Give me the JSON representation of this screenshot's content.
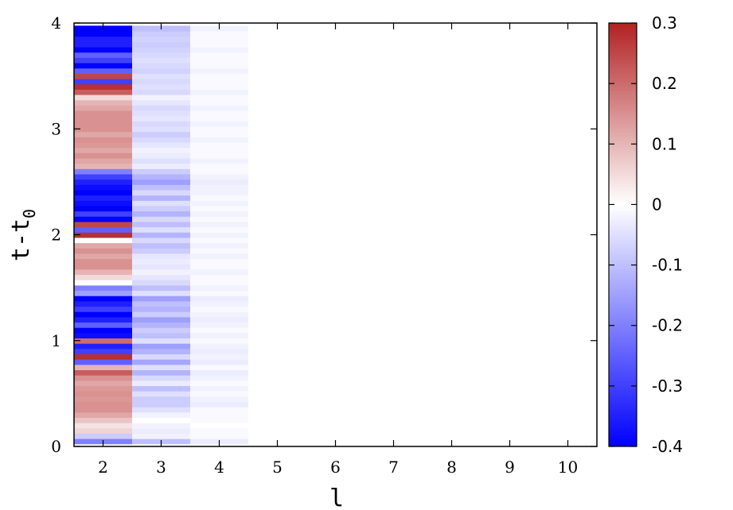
{
  "chart_data": {
    "type": "heatmap",
    "title": "",
    "xlabel": "l",
    "ylabel_base": "t-t",
    "ylabel_sub": "0",
    "x": [
      2,
      3,
      4,
      5,
      6,
      7,
      8,
      9,
      10
    ],
    "x_ticks": [
      "2",
      "3",
      "4",
      "5",
      "6",
      "7",
      "8",
      "9",
      "10"
    ],
    "xlim": [
      1.5,
      10.5
    ],
    "ylim": [
      0,
      4
    ],
    "y_ticks": [
      "0",
      "1",
      "2",
      "3",
      "4"
    ],
    "y_start": 0.05,
    "y_step": 0.05,
    "columns": [
      {
        "l": 2,
        "values": [
          -0.2,
          -0.08,
          0.06,
          0.04,
          0.08,
          0.12,
          0.15,
          0.15,
          0.14,
          0.15,
          0.14,
          0.12,
          0.15,
          0.22,
          0.1,
          -0.25,
          0.28,
          -0.3,
          -0.35,
          0.2,
          -0.38,
          -0.4,
          -0.25,
          -0.35,
          -0.4,
          -0.3,
          -0.35,
          -0.4,
          -0.15,
          -0.2,
          0.0,
          0.05,
          0.1,
          0.15,
          0.15,
          0.12,
          0.15,
          0.12,
          0.0,
          0.28,
          -0.25,
          0.25,
          -0.4,
          -0.3,
          -0.4,
          -0.38,
          -0.35,
          -0.4,
          -0.38,
          -0.35,
          -0.3,
          -0.2,
          0.1,
          0.12,
          0.15,
          0.12,
          0.14,
          0.15,
          0.12,
          0.15,
          0.15,
          0.15,
          0.15,
          0.12,
          0.1,
          0.05,
          0.22,
          0.28,
          -0.3,
          0.25,
          -0.25,
          -0.4,
          -0.3,
          -0.25,
          -0.4,
          -0.35,
          -0.35,
          -0.4,
          -0.4
        ]
      },
      {
        "l": 3,
        "values": [
          -0.1,
          -0.02,
          -0.03,
          -0.02,
          0.0,
          -0.02,
          -0.05,
          -0.08,
          -0.08,
          -0.05,
          -0.1,
          -0.03,
          -0.06,
          -0.12,
          -0.05,
          -0.14,
          -0.06,
          -0.12,
          -0.15,
          -0.05,
          -0.1,
          -0.08,
          -0.12,
          -0.15,
          -0.08,
          -0.12,
          -0.1,
          -0.15,
          -0.05,
          -0.1,
          -0.06,
          -0.04,
          -0.02,
          -0.04,
          -0.03,
          -0.04,
          -0.08,
          -0.1,
          -0.06,
          -0.12,
          -0.05,
          -0.1,
          -0.06,
          -0.12,
          -0.08,
          -0.05,
          -0.12,
          -0.06,
          -0.1,
          -0.15,
          -0.12,
          -0.08,
          -0.03,
          -0.05,
          -0.03,
          -0.02,
          -0.04,
          -0.06,
          -0.08,
          -0.05,
          -0.06,
          -0.04,
          -0.05,
          -0.06,
          -0.04,
          -0.02,
          -0.06,
          -0.05,
          -0.06,
          -0.05,
          -0.07,
          -0.06,
          -0.05,
          -0.06,
          -0.07,
          -0.08,
          -0.07,
          -0.08,
          -0.1
        ]
      },
      {
        "l": 4,
        "values": [
          -0.03,
          -0.01,
          -0.01,
          0.0,
          -0.01,
          -0.01,
          -0.01,
          -0.03,
          -0.02,
          -0.01,
          -0.02,
          -0.01,
          -0.02,
          -0.03,
          -0.01,
          -0.03,
          -0.02,
          -0.03,
          -0.02,
          -0.01,
          -0.02,
          -0.01,
          -0.02,
          -0.03,
          -0.02,
          -0.01,
          -0.02,
          -0.03,
          -0.01,
          -0.02,
          -0.01,
          -0.01,
          -0.02,
          -0.01,
          -0.01,
          -0.02,
          -0.01,
          -0.02,
          -0.01,
          -0.02,
          -0.01,
          -0.02,
          -0.01,
          -0.02,
          -0.01,
          -0.02,
          -0.01,
          -0.02,
          -0.02,
          -0.03,
          -0.02,
          -0.01,
          -0.01,
          -0.02,
          -0.01,
          -0.01,
          -0.01,
          -0.02,
          -0.01,
          -0.01,
          -0.02,
          -0.01,
          -0.01,
          -0.02,
          -0.01,
          -0.01,
          -0.02,
          -0.01,
          -0.01,
          -0.01,
          -0.02,
          -0.01,
          -0.01,
          -0.01,
          -0.02,
          -0.01,
          -0.01,
          -0.01,
          -0.02
        ]
      }
    ],
    "other_columns_value": 0.0,
    "colorbar": {
      "min": -0.4,
      "max": 0.3,
      "ticks": [
        0.3,
        0.2,
        0.1,
        0,
        -0.1,
        -0.2,
        -0.3,
        -0.4
      ],
      "tick_labels": [
        "0.3",
        "0.2",
        "0.1",
        "0",
        "-0.1",
        "-0.2",
        "-0.3",
        "-0.4"
      ],
      "low_color": "#0000ff",
      "mid_color": "#ffffff",
      "high_color": "#b22222"
    },
    "grid": false
  }
}
